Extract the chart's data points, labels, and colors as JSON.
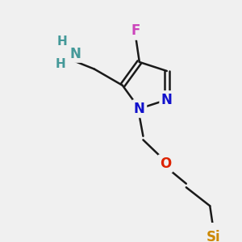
{
  "bg_color": "#f0f0f0",
  "bond_color": "#1a1a1a",
  "bond_width": 1.8,
  "atom_colors": {
    "F": "#cc44bb",
    "N": "#1111cc",
    "O": "#dd2200",
    "Si": "#cc8800",
    "NH2_N": "#449999",
    "NH2_H": "#449999",
    "C": "#1a1a1a"
  },
  "font_size": 11
}
